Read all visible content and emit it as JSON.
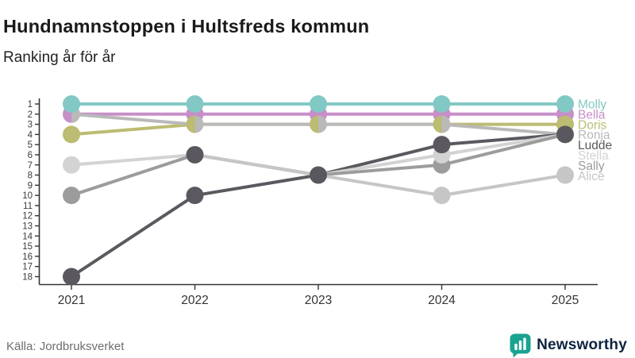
{
  "header": {
    "title": "Hundnamnstoppen i Hultsfreds kommun",
    "subtitle": "Ranking år för år"
  },
  "footer": {
    "source": "Källa: Jordbruksverket",
    "brand": "Newsworthy"
  },
  "icons": {
    "brand_icon": "bar-chart-speech-bubble",
    "brand_icon_color": "#1aa391"
  },
  "chart_data": {
    "type": "line",
    "subtype": "bump-ranking",
    "x": [
      2021,
      2022,
      2023,
      2024,
      2025
    ],
    "rank_axis": {
      "min": 1,
      "max": 18,
      "inverted": true
    },
    "rank_ticks": [
      1,
      2,
      3,
      4,
      5,
      6,
      7,
      8,
      9,
      10,
      11,
      12,
      13,
      14,
      15,
      16,
      17,
      18
    ],
    "grid": false,
    "legend_position": "right-of-last-point",
    "tie_color": "#5a585e",
    "axis_color": "#333333",
    "series": [
      {
        "name": "Molly",
        "color": "#82c8c4",
        "values": [
          1,
          1,
          1,
          1,
          1
        ]
      },
      {
        "name": "Bella",
        "color": "#c78ec9",
        "values": [
          2,
          2,
          2,
          2,
          2
        ]
      },
      {
        "name": "Doris",
        "color": "#bcbc72",
        "values": [
          4,
          3,
          3,
          3,
          3
        ]
      },
      {
        "name": "Ronja",
        "color": "#b9b9b9",
        "values": [
          2,
          3,
          3,
          3,
          4
        ]
      },
      {
        "name": "Ludde",
        "color": "#5b595f",
        "values": [
          18,
          10,
          8,
          5,
          4
        ]
      },
      {
        "name": "Stella",
        "color": "#d3d3d3",
        "values": [
          7,
          6,
          8,
          6,
          4
        ]
      },
      {
        "name": "Sally",
        "color": "#9c9c9c",
        "values": [
          10,
          6,
          8,
          7,
          4
        ]
      },
      {
        "name": "Alice",
        "color": "#c6c6c6",
        "values": [
          null,
          6,
          8,
          10,
          8
        ]
      }
    ]
  }
}
